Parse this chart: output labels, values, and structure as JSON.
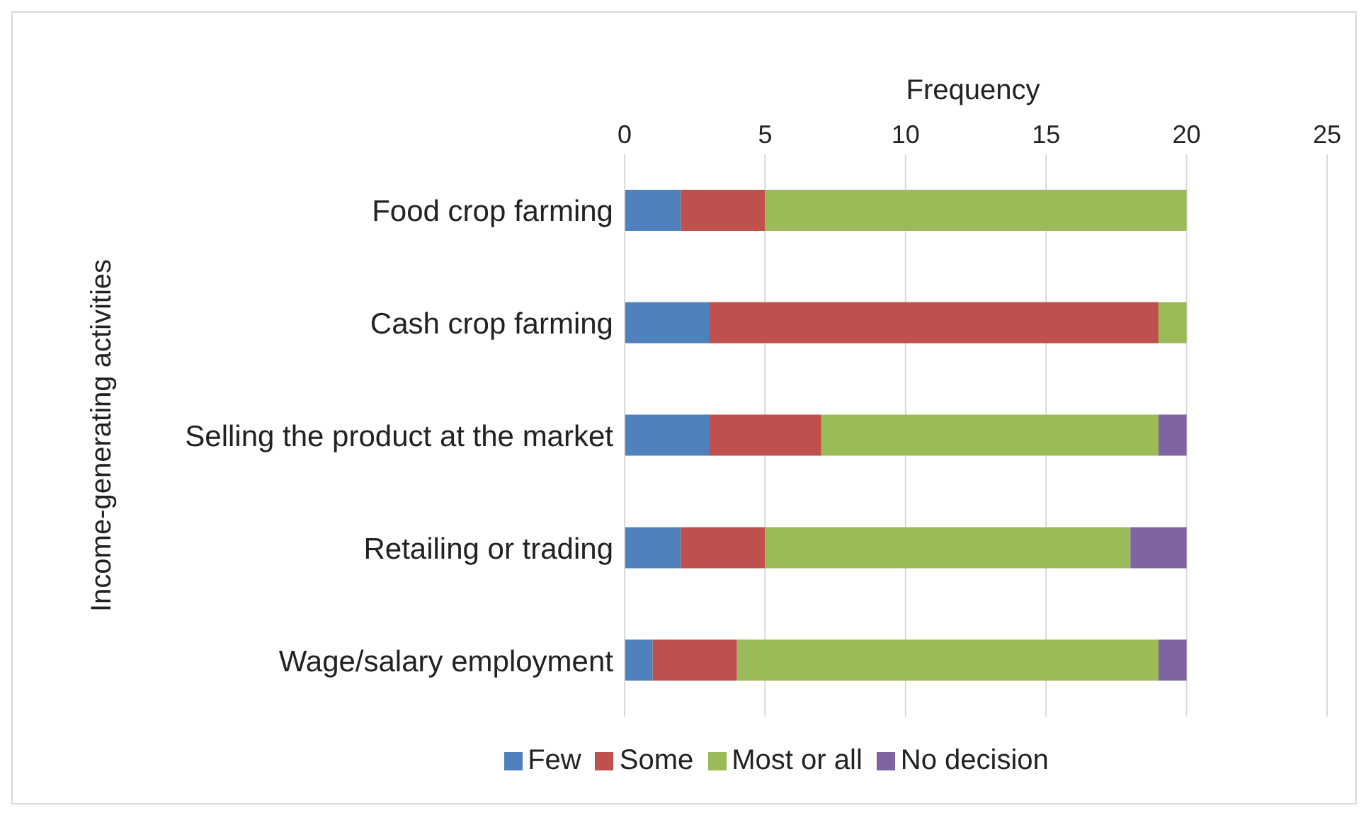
{
  "chart_data": {
    "type": "bar",
    "orientation": "horizontal",
    "stacked": true,
    "xlabel": "Frequency",
    "ylabel": "Income-generating activities",
    "categories": [
      "Food crop farming",
      "Cash crop farming",
      "Selling the product at the market",
      "Retailing or trading",
      "Wage/salary employment"
    ],
    "series": [
      {
        "name": "Few",
        "color": "#4f81bd",
        "values": [
          2,
          3,
          3,
          2,
          1
        ]
      },
      {
        "name": "Some",
        "color": "#c0504d",
        "values": [
          3,
          16,
          4,
          3,
          3
        ]
      },
      {
        "name": "Most or all",
        "color": "#9bbb59",
        "values": [
          15,
          1,
          12,
          13,
          15
        ]
      },
      {
        "name": "No decision",
        "color": "#8064a2",
        "values": [
          null,
          null,
          1,
          2,
          1
        ]
      }
    ],
    "xlim": [
      0,
      25
    ],
    "xticks": [
      0,
      5,
      10,
      15,
      20,
      25
    ],
    "grid": "x",
    "legend": "bottom"
  }
}
